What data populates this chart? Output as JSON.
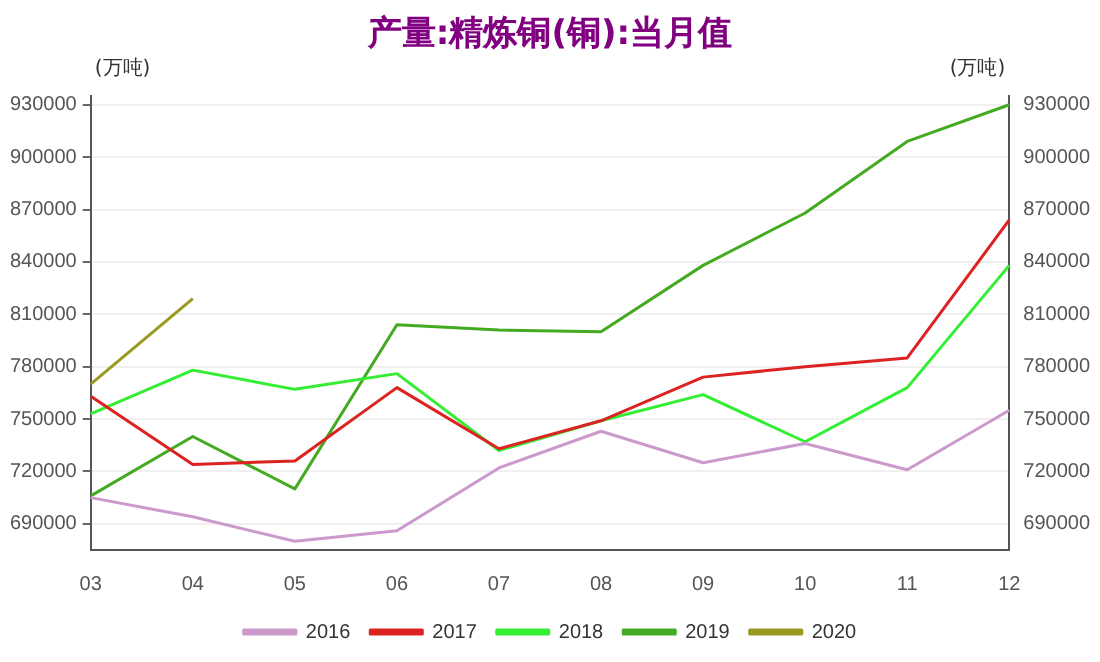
{
  "chart_data": {
    "type": "line",
    "title": "产量:精炼铜(铜):当月值",
    "ylabel": "(万吨)",
    "y2label": "(万吨)",
    "categories": [
      "03",
      "04",
      "05",
      "06",
      "07",
      "08",
      "09",
      "10",
      "11",
      "12"
    ],
    "series": [
      {
        "name": "2016",
        "color": "#cc99cc",
        "values": [
          705000,
          694000,
          680000,
          686000,
          722000,
          743000,
          725000,
          736000,
          721000,
          755000
        ]
      },
      {
        "name": "2017",
        "color": "#dd2222",
        "values": [
          763000,
          724000,
          726000,
          768000,
          733000,
          749000,
          774000,
          780000,
          785000,
          864000
        ]
      },
      {
        "name": "2018",
        "color": "#33ee33",
        "values": [
          753000,
          778000,
          767000,
          776000,
          732000,
          749000,
          764000,
          737000,
          768000,
          838000
        ]
      },
      {
        "name": "2019",
        "color": "#44aa22",
        "values": [
          706000,
          740000,
          710000,
          804000,
          801000,
          800000,
          838000,
          868000,
          909000,
          930000
        ]
      },
      {
        "name": "2020",
        "color": "#999922",
        "values": [
          770000,
          819000,
          null,
          null,
          null,
          null,
          null,
          null,
          null,
          null
        ]
      }
    ],
    "ylim": [
      675000,
      935000
    ],
    "yticks": [
      690000,
      720000,
      750000,
      780000,
      810000,
      840000,
      870000,
      900000,
      930000
    ],
    "y2lim": [
      675000,
      935000
    ],
    "y2ticks": [
      690000,
      720000,
      750000,
      780000,
      810000,
      840000,
      870000,
      900000,
      930000
    ],
    "grid": "y",
    "legend": "bottom",
    "marker": "none",
    "line_style": "solid"
  }
}
